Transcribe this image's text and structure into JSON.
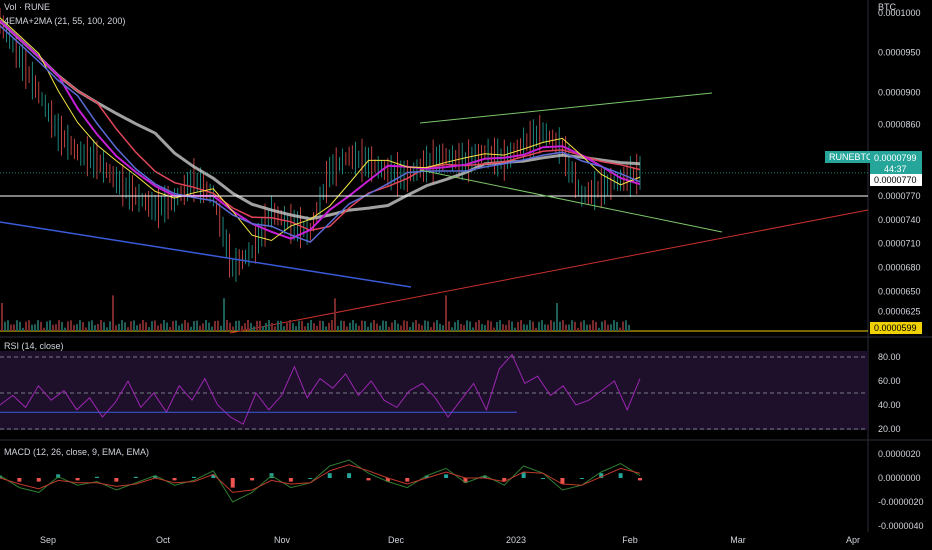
{
  "header": {
    "symbol_line": "Vol · RUNE",
    "indicator_line": "4EMA+2MA (21, 55, 100, 200)",
    "quote_currency": "BTC"
  },
  "price_axis": {
    "ticks": [
      "0.0001000",
      "0.0000950",
      "0.0000900",
      "0.0000860",
      "0.0000820",
      "0.0000770",
      "0.0000740",
      "0.0000710",
      "0.0000680",
      "0.0000650",
      "0.0000625"
    ],
    "symbol_tag": "RUNEBTC",
    "current_price": "0.0000799",
    "countdown": "44:37",
    "level_tag": "0.0000770",
    "base_tag": "0.0000599"
  },
  "rsi": {
    "title": "RSI (14, close)",
    "ticks": [
      "80.00",
      "60.00",
      "40.00",
      "20.00"
    ]
  },
  "macd": {
    "title": "MACD (12, 26, close, 9, EMA, EMA)",
    "ticks": [
      "0.0000020",
      "0.0000000",
      "-0.0000020",
      "-0.0000040"
    ]
  },
  "time_axis": {
    "labels": [
      "Sep",
      "Oct",
      "Nov",
      "Dec",
      "2023",
      "Feb",
      "Mar",
      "Apr"
    ]
  },
  "colors": {
    "background": "#000000",
    "ema21": "#f5e642",
    "ema55": "#c71fd6",
    "ema100": "#e0455a",
    "ma200": "#bdbdbd",
    "ma_blue": "#5b6bd6",
    "trend_green": "#7cc66a",
    "trend_red": "#c9302c",
    "trend_blue": "#3a5bd9",
    "rsi_line": "#9c27b0",
    "rsi_fill": "#1e0f2b",
    "macd_line": "#2e7d32",
    "macd_signal": "#c0392b",
    "hist_up": "#26a69a",
    "hist_down": "#ef5350",
    "tag_teal": "#26a69a",
    "level_white": "#ffffff",
    "base_yellow": "#f0d000"
  },
  "chart_data": [
    {
      "type": "line",
      "title": "",
      "ylabel": "BTC",
      "x_axis": [
        "Sep",
        "Oct",
        "Nov",
        "Dec",
        "2023",
        "Feb",
        "Mar",
        "Apr"
      ],
      "ylim": [
        5.99e-05,
        0.000101
      ],
      "series": [
        {
          "name": "",
          "values_approx": [
            9.9e-05,
            9.45e-05,
            9e-05,
            8.5e-05,
            8.25e-05,
            8.15e-05,
            7.9e-05,
            7.7e-05,
            7.55e-05,
            7.65e-05,
            7.9e-05,
            7.7e-05,
            6.8e-05,
            7e-05,
            7.5e-05,
            7.35e-05,
            7.25e-05,
            8e-05,
            8.2e-05,
            8.12e-05,
            8e-05,
            7.95e-05,
            8.1e-05,
            8.2e-05,
            8.12e-05,
            8.25e-05,
            8.15e-05,
            8.35e-05,
            8.5e-05,
            8.3e-05,
            7.7e-05,
            7.8e-05,
            7.9e-05,
            7.99e-05
          ]
        }
      ],
      "annotations": {
        "horizontal_level": 7.7e-05,
        "current": 7.99e-05
      }
    },
    {
      "type": "line",
      "title": "RSI (14, close)",
      "ylim": [
        15,
        90
      ],
      "levels": [
        80,
        50,
        20
      ],
      "series": [
        {
          "name": "",
          "values_approx": [
            40,
            48,
            38,
            56,
            44,
            52,
            36,
            46,
            30,
            42,
            60,
            38,
            50,
            34,
            56,
            44,
            62,
            40,
            30,
            24,
            50,
            36,
            48,
            72,
            46,
            62,
            54,
            66,
            48,
            60,
            44,
            38,
            52,
            58,
            46,
            30,
            44,
            58,
            36,
            70,
            82,
            58,
            64,
            48,
            56,
            40,
            44,
            52,
            60,
            36,
            62
          ]
        }
      ]
    },
    {
      "type": "line",
      "title": "MACD (12, 26, close, 9, EMA, EMA)",
      "ylim": [
        -4.5e-06,
        2.5e-06
      ],
      "series": [
        {
          "name": "",
          "values_approx": [
            2e-07,
            -8e-07,
            -1.2e-06,
            1e-07,
            -6e-07,
            -3e-07,
            -1e-06,
            -4e-07,
            2e-07,
            -6e-07,
            -2e-07,
            6e-07,
            -2e-06,
            -1.2e-06,
            2e-07,
            -8e-07,
            -4e-07,
            1e-06,
            1.5e-06,
            4e-07,
            -3e-07,
            -8e-07,
            2e-07,
            8e-07,
            -4e-07,
            2e-07,
            -6e-07,
            1e-06,
            4e-07,
            -1e-06,
            -6e-07,
            5e-07,
            1.2e-06,
            2e-07
          ]
        },
        {
          "name": "",
          "values_approx": [
            0.0,
            -5e-07,
            -9e-07,
            -2e-07,
            -4e-07,
            -4e-07,
            -7e-07,
            -5e-07,
            0.0,
            -4e-07,
            -3e-07,
            3e-07,
            -1.2e-06,
            -1e-06,
            -2e-07,
            -5e-07,
            -4e-07,
            6e-07,
            1.1e-06,
            6e-07,
            0.0,
            -5e-07,
            0.0,
            5e-07,
            0.0,
            0.0,
            -3e-07,
            5e-07,
            4e-07,
            -5e-07,
            -6e-07,
            1e-07,
            8e-07,
            4e-07
          ]
        }
      ]
    }
  ]
}
